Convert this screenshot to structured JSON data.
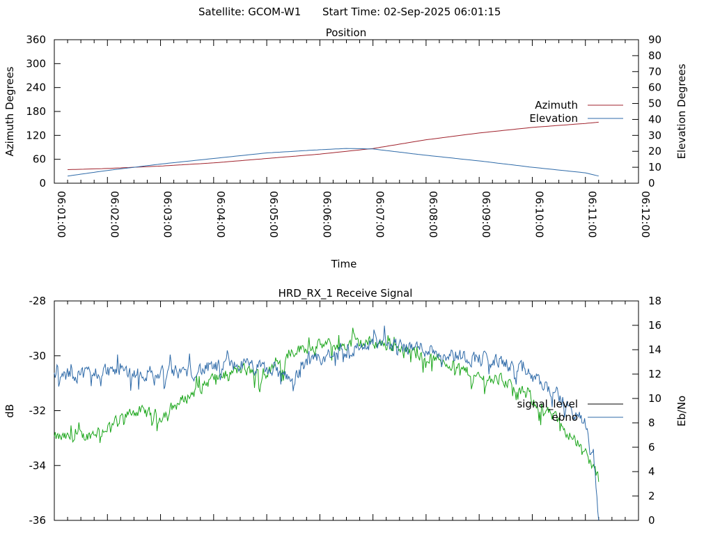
{
  "header": {
    "satellite_label": "Satellite: GCOM-W1",
    "start_time_label": "Start Time: 02-Sep-2025 06:01:15"
  },
  "chart_data": [
    {
      "type": "line",
      "title": "Position",
      "xlabel": "Time",
      "ylabel": "Azimuth Degrees",
      "y2label": "Elevation Degrees",
      "x_ticks": [
        "06:01:00",
        "06:02:00",
        "06:03:00",
        "06:04:00",
        "06:05:00",
        "06:06:00",
        "06:07:00",
        "06:08:00",
        "06:09:00",
        "06:10:00",
        "06:11:00",
        "06:12:00"
      ],
      "xlim_minutes": [
        0,
        11
      ],
      "ylim": [
        0,
        360
      ],
      "y_ticks": [
        "0",
        "60",
        "120",
        "180",
        "240",
        "300",
        "360"
      ],
      "y2lim": [
        0,
        90
      ],
      "y2_ticks": [
        "0",
        "10",
        "20",
        "30",
        "40",
        "50",
        "60",
        "70",
        "80",
        "90"
      ],
      "legend_position": "right",
      "series": [
        {
          "name": "Azimuth",
          "axis": "y",
          "color": "#a0222c",
          "x": [
            0.25,
            1,
            2,
            3,
            4,
            5,
            6,
            7,
            8,
            9,
            10,
            10.25
          ],
          "values": [
            34,
            37,
            43,
            51,
            62,
            73,
            87,
            109,
            126,
            140,
            150,
            153
          ]
        },
        {
          "name": "Elevation",
          "axis": "y2",
          "color": "#2e6aa8",
          "x": [
            0.25,
            1,
            2,
            3,
            4,
            5,
            5.5,
            6,
            7,
            8,
            9,
            10,
            10.25
          ],
          "values": [
            4.5,
            8,
            12,
            15.5,
            19,
            21,
            21.8,
            21.5,
            17.5,
            14,
            10,
            6.5,
            4.5
          ]
        }
      ]
    },
    {
      "type": "line",
      "title": "HRD_RX_1 Receive Signal",
      "ylabel": "dB",
      "y2label": "Eb/No",
      "ylim": [
        -36,
        -28
      ],
      "y_ticks": [
        "-28",
        "-30",
        "-32",
        "-34",
        "-36"
      ],
      "y2lim": [
        0,
        18
      ],
      "y2_ticks": [
        "0",
        "2",
        "4",
        "6",
        "8",
        "10",
        "12",
        "14",
        "16",
        "18"
      ],
      "legend_position": "right",
      "series": [
        {
          "name": "signal_level",
          "axis": "y",
          "color": "#19a519",
          "x": [
            0,
            0.5,
            1,
            1.5,
            2,
            2.5,
            3,
            3.5,
            4,
            4.5,
            5,
            5.5,
            6,
            6.5,
            7,
            7.5,
            8,
            8.5,
            9,
            9.5,
            10,
            10.25
          ],
          "values": [
            -33.0,
            -33.0,
            -32.6,
            -32.0,
            -32.2,
            -31.5,
            -30.8,
            -30.5,
            -30.7,
            -29.8,
            -29.6,
            -29.6,
            -29.5,
            -29.7,
            -30.0,
            -30.3,
            -30.8,
            -30.9,
            -31.6,
            -32.4,
            -33.5,
            -34.5
          ]
        },
        {
          "name": "ebno",
          "axis": "y2",
          "color": "#2e6aa8",
          "x": [
            0,
            0.5,
            1,
            1.5,
            2,
            2.5,
            3,
            3.5,
            4,
            4.5,
            5,
            5.5,
            6,
            6.5,
            7,
            7.5,
            8,
            8.5,
            9,
            9.5,
            10,
            10.15,
            10.25
          ],
          "values": [
            11.7,
            12.0,
            12.3,
            12.2,
            12.0,
            12.2,
            12.5,
            12.8,
            12.3,
            11.8,
            13.2,
            13.9,
            14.5,
            14.3,
            14.1,
            13.6,
            13.3,
            12.9,
            11.8,
            10.2,
            7.8,
            5.5,
            0
          ]
        }
      ]
    }
  ]
}
